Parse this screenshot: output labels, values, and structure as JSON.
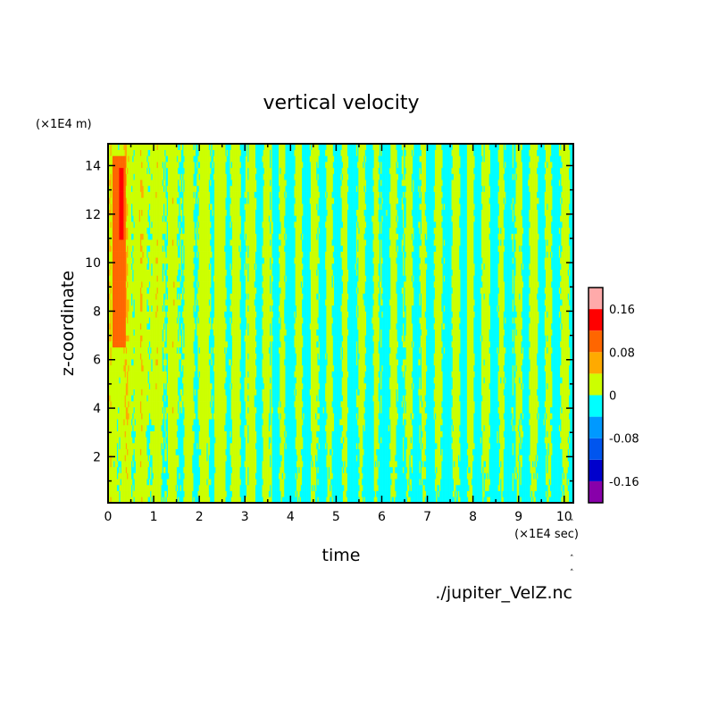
{
  "chart_data": {
    "type": "heatmap",
    "title": "vertical velocity",
    "xlabel": "time",
    "ylabel": "z-coordinate",
    "x_unit": "(×1E4 sec)",
    "y_unit": "(×1E4 m)",
    "xlim": [
      0,
      10.2
    ],
    "ylim": [
      0.1,
      14.9
    ],
    "x_ticks": [
      "0",
      "1",
      "2",
      "3",
      "4",
      "5",
      "6",
      "7",
      "8",
      "9",
      "10"
    ],
    "y_ticks": [
      "2",
      "4",
      "6",
      "8",
      "10",
      "12",
      "14"
    ],
    "source_file": "./jupiter_VelZ.nc",
    "colorbar": {
      "levels": [
        {
          "lo": -0.2,
          "hi": -0.16,
          "color": "#8800aa"
        },
        {
          "lo": -0.16,
          "hi": -0.12,
          "color": "#0000cc"
        },
        {
          "lo": -0.12,
          "hi": -0.08,
          "color": "#0055ee"
        },
        {
          "lo": -0.08,
          "hi": -0.04,
          "color": "#0099ff"
        },
        {
          "lo": -0.04,
          "hi": 0.0,
          "color": "#00ffff"
        },
        {
          "lo": 0.0,
          "hi": 0.04,
          "color": "#ccff00"
        },
        {
          "lo": 0.04,
          "hi": 0.08,
          "color": "#ffaa00"
        },
        {
          "lo": 0.08,
          "hi": 0.12,
          "color": "#ff6600"
        },
        {
          "lo": 0.12,
          "hi": 0.16,
          "color": "#ff0000"
        },
        {
          "lo": 0.16,
          "hi": 0.2,
          "color": "#ffaaaa"
        }
      ],
      "tick_labels": [
        "0.16",
        "0.08",
        "0",
        "-0.08",
        "-0.16"
      ],
      "tick_values": [
        0.16,
        0.08,
        0,
        -0.08,
        -0.16
      ]
    },
    "features": [
      {
        "note": "positive band near top-left",
        "x_range": [
          0.1,
          0.4
        ],
        "z_range": [
          6.5,
          14.5
        ],
        "value": 0.09
      },
      {
        "note": "strongest core",
        "x_range": [
          0.25,
          0.35
        ],
        "z_range": [
          11,
          14
        ],
        "value": 0.13
      }
    ]
  }
}
